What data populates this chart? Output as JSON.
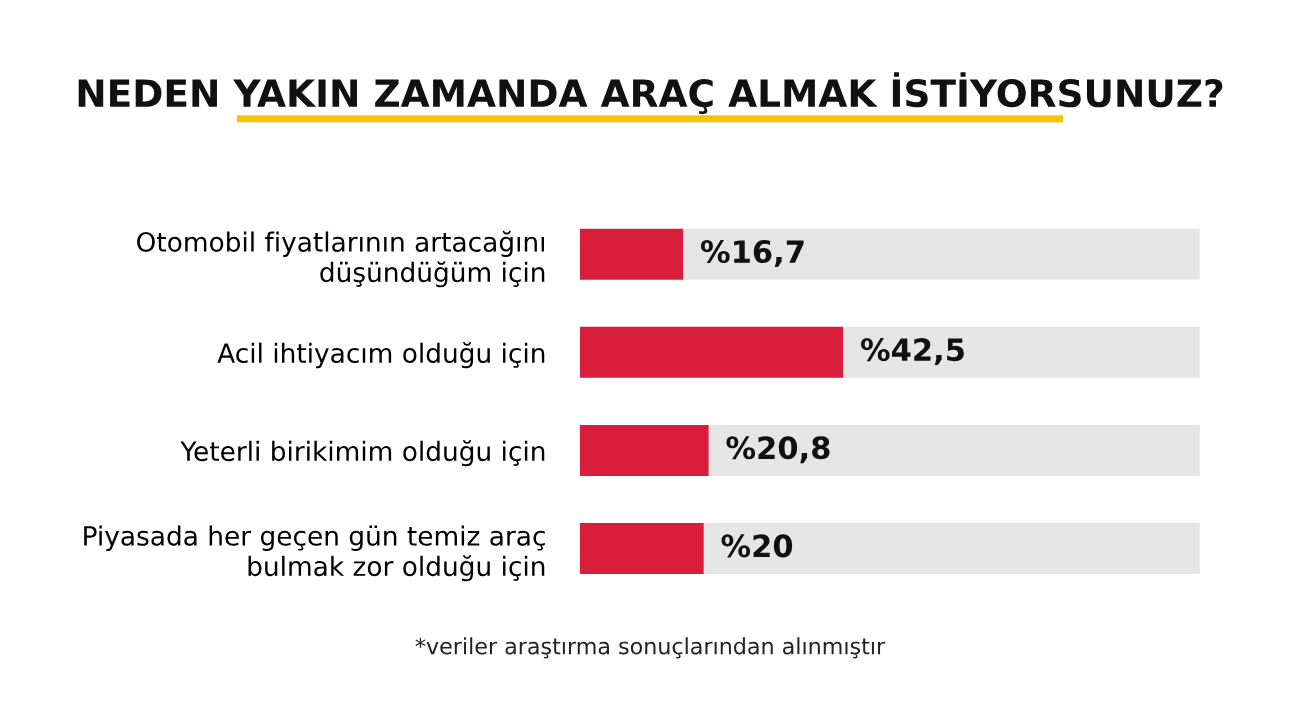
{
  "chart_data": {
    "type": "bar",
    "orientation": "horizontal",
    "title": "NEDEN YAKIN ZAMANDA ARAÇ ALMAK İSTİYORSUNUZ?",
    "categories": [
      "Otomobil fiyatlarının artacağını\ndüşündüğüm için",
      "Acil ihtiyacım olduğu için",
      "Yeterli birikimim olduğu için",
      "Piyasada her geçen gün temiz araç\nbulmak zor olduğu için"
    ],
    "stacked": true,
    "series": [
      {
        "color": "#d81e3a",
        "values": [
          16.7,
          42.5,
          20.8,
          20
        ],
        "value_labels": [
          "%16,7",
          "%42,5",
          "%20,8",
          "%20"
        ]
      },
      {
        "color": "#e5e5e5",
        "values": [
          83.3,
          57.5,
          79.2,
          80
        ]
      }
    ],
    "xlim": [
      0,
      100
    ],
    "tick_labels": "y",
    "grid": false,
    "legend": false,
    "annotations": [
      "*veriler araştırma sonuçlarından alınmıştır"
    ]
  }
}
